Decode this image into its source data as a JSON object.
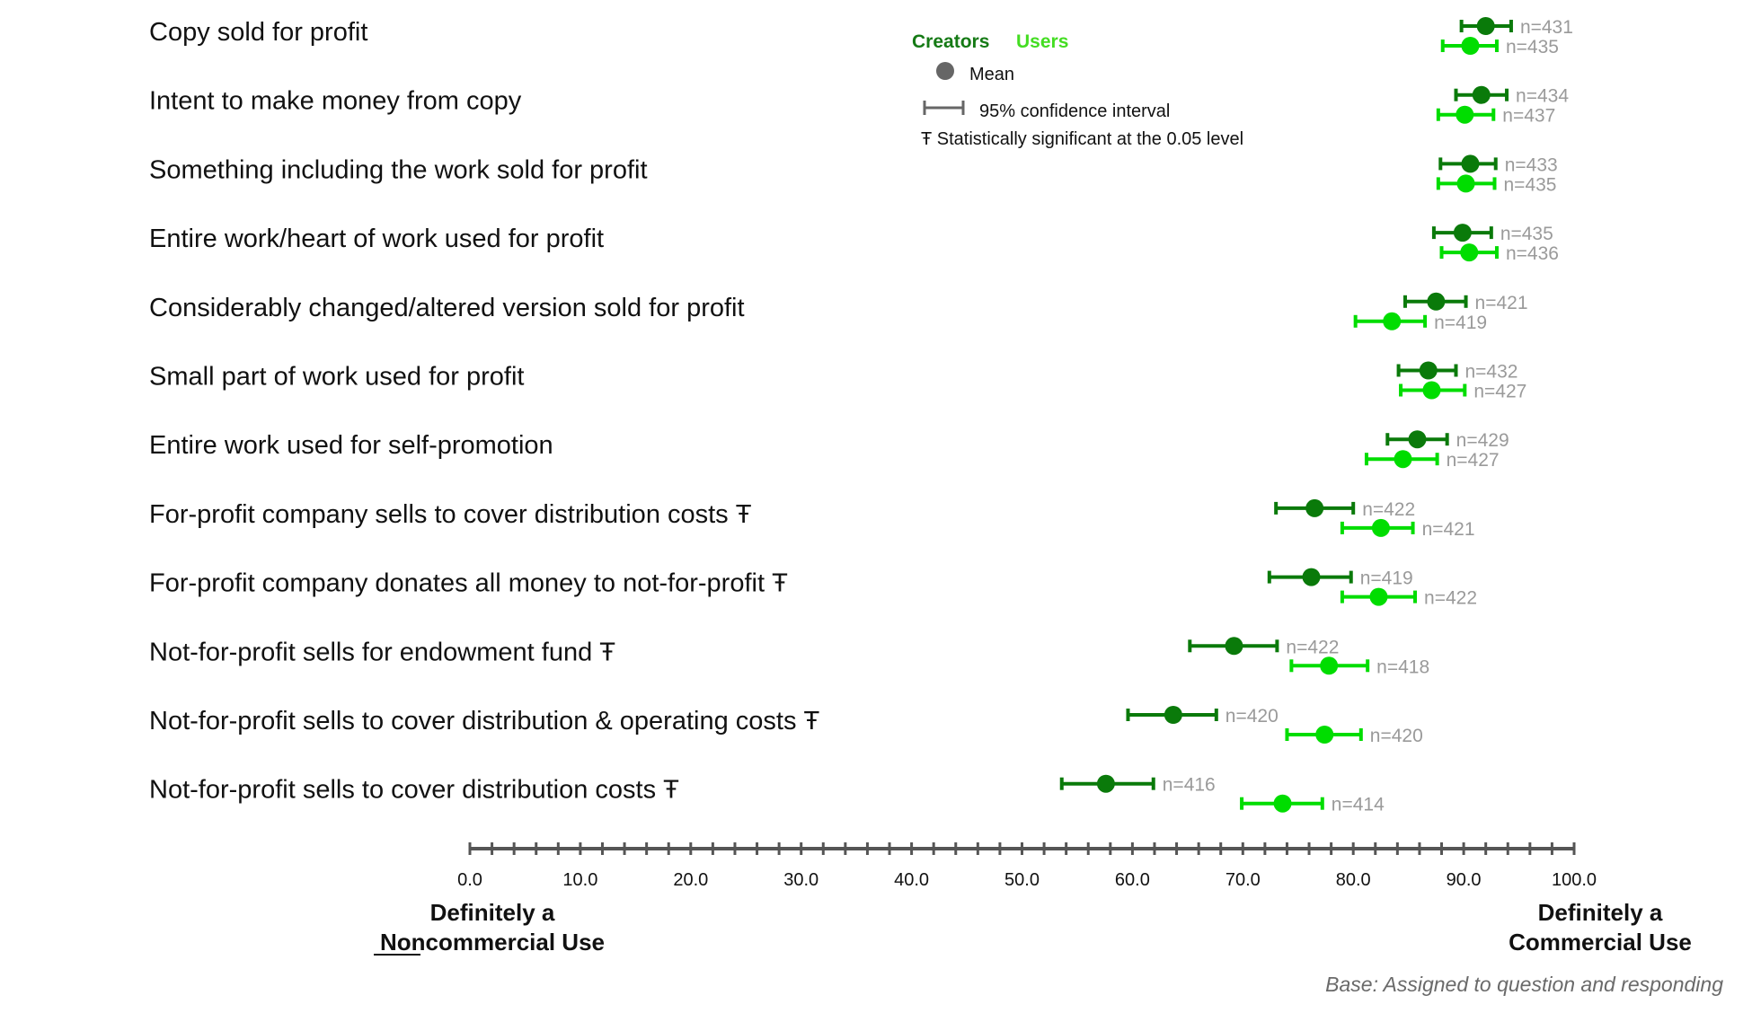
{
  "chart_data": {
    "type": "dot-errorbar",
    "categories": [
      "Copy sold for profit",
      "Intent to make money from copy",
      "Something including the work sold for profit",
      "Entire work/heart of work used for profit",
      "Considerably changed/altered version sold for profit",
      "Small part of work used for profit",
      "Entire work used for self-promotion",
      "For-profit company sells to cover distribution costs Ŧ",
      "For-profit company donates all money to not-for-profit Ŧ",
      "Not-for-profit sells for endowment fund Ŧ",
      "Not-for-profit sells to cover distribution & operating costs Ŧ",
      "Not-for-profit sells to cover distribution costs Ŧ"
    ],
    "series": [
      {
        "name": "Creators",
        "color": "#0a7a0a",
        "mean": [
          92.0,
          91.6,
          90.6,
          89.9,
          87.5,
          86.8,
          85.8,
          76.5,
          76.2,
          69.2,
          63.7,
          57.6
        ],
        "ci_low": [
          89.8,
          89.3,
          87.9,
          87.3,
          84.7,
          84.1,
          83.1,
          73.0,
          72.4,
          65.2,
          59.6,
          53.6
        ],
        "ci_high": [
          94.3,
          93.9,
          92.9,
          92.5,
          90.2,
          89.3,
          88.5,
          80.0,
          79.8,
          73.1,
          67.6,
          61.9
        ],
        "n": [
          "n=431",
          "n=434",
          "n=433",
          "n=435",
          "n=421",
          "n=432",
          "n=429",
          "n=422",
          "n=419",
          "n=422",
          "n=420",
          "n=416"
        ]
      },
      {
        "name": "Users",
        "color": "#00dd00",
        "mean": [
          90.6,
          90.1,
          90.2,
          90.5,
          83.5,
          87.1,
          84.5,
          82.5,
          82.3,
          77.8,
          77.4,
          73.6
        ],
        "ci_low": [
          88.1,
          87.7,
          87.7,
          88.0,
          80.2,
          84.3,
          81.2,
          79.0,
          79.0,
          74.4,
          74.0,
          69.9
        ],
        "ci_high": [
          93.0,
          92.7,
          92.8,
          93.0,
          86.5,
          90.1,
          87.6,
          85.4,
          85.6,
          81.3,
          80.7,
          77.2
        ],
        "n": [
          "n=435",
          "n=437",
          "n=435",
          "n=436",
          "n=419",
          "n=427",
          "n=427",
          "n=421",
          "n=422",
          "n=418",
          "n=420",
          "n=414"
        ]
      }
    ],
    "x_ticks": [
      "0.0",
      "10.0",
      "20.0",
      "30.0",
      "40.0",
      "50.0",
      "60.0",
      "70.0",
      "80.0",
      "90.0",
      "100.0"
    ],
    "xlim": [
      0,
      100
    ],
    "x_left_label": [
      "Definitely a",
      "Noncommercial Use"
    ],
    "x_left_label_underlined": "Non",
    "x_right_label": [
      "Definitely a",
      "Commercial Use"
    ],
    "legend": {
      "creators": "Creators",
      "users": "Users",
      "mean": "Mean",
      "ci": "95% confidence interval",
      "significance": "Ŧ Statistically significant at the 0.05 level",
      "placement": "top-center"
    },
    "base_note": "Base: Assigned to question and responding"
  }
}
